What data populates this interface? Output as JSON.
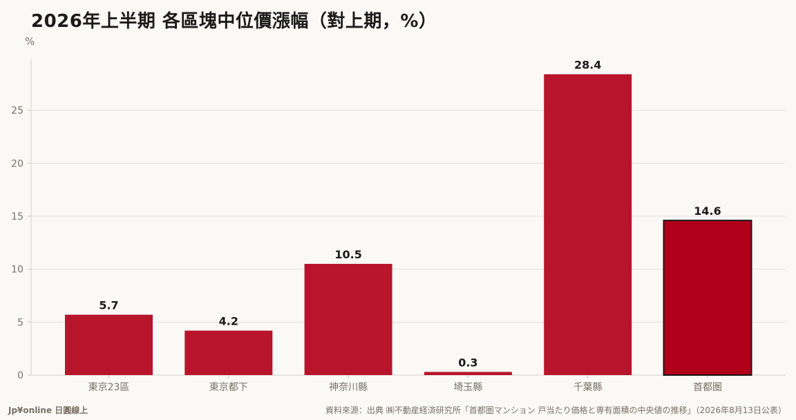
{
  "title": "2026年上半期 各區塊中位價漲幅（對上期，%）",
  "brand": "Jp¥online 日圓線上",
  "source": "資料來源：出典 ㈱不動産経済研究所「首都圏マンション 戸当たり価格と専有面積の中央値の推移」（2026年8月13日公表）",
  "colors": {
    "bar": "#b8152d",
    "highlight_bar": "#b0001a",
    "highlight_outline": "#1a1a1a",
    "grid": "#e4e0d9",
    "axis_text": "#7a7064",
    "label_text": "#1a1a1a"
  },
  "chart_data": {
    "type": "bar",
    "title": "2026年上半期 各區塊中位價漲幅（對上期，%）",
    "ylabel": "%",
    "xlabel": "",
    "categories": [
      "東京23區",
      "東京都下",
      "神奈川縣",
      "埼玉縣",
      "千葉縣",
      "首都圏"
    ],
    "values": [
      5.7,
      4.2,
      10.5,
      0.3,
      28.4,
      14.6
    ],
    "highlight_category": "首都圏",
    "yticks": [
      0,
      5,
      10,
      15,
      20,
      25
    ],
    "ylim": [
      0,
      29.8
    ],
    "grid": true,
    "legend": "none"
  }
}
